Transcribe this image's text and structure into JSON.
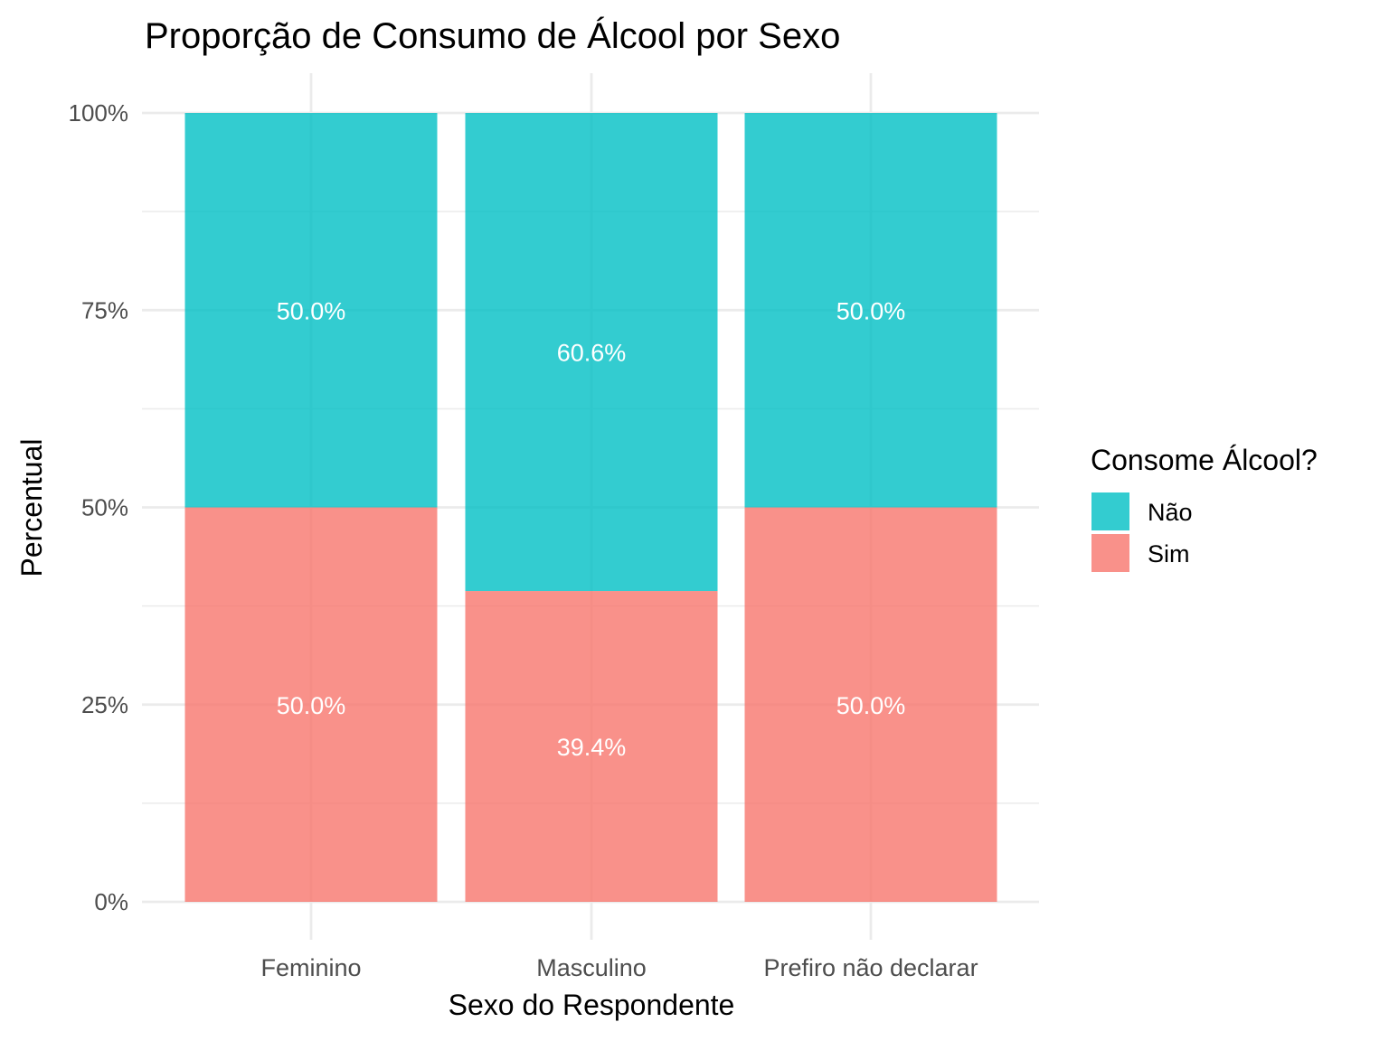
{
  "chart_data": {
    "type": "bar",
    "stacked": true,
    "title": "Proporção de Consumo de Álcool por Sexo",
    "xlabel": "Sexo do Respondente",
    "ylabel": "Percentual",
    "ylim": [
      0,
      100
    ],
    "y_ticks": [
      {
        "value": 0,
        "label": "0%"
      },
      {
        "value": 25,
        "label": "25%"
      },
      {
        "value": 50,
        "label": "50%"
      },
      {
        "value": 75,
        "label": "75%"
      },
      {
        "value": 100,
        "label": "100%"
      }
    ],
    "categories": [
      "Feminino",
      "Masculino",
      "Prefiro não declarar"
    ],
    "series": [
      {
        "name": "Sim",
        "color": "#F8766D",
        "values": [
          50.0,
          39.4,
          50.0
        ],
        "labels": [
          "50.0%",
          "39.4%",
          "50.0%"
        ]
      },
      {
        "name": "Não",
        "color": "#00BFC4",
        "values": [
          50.0,
          60.6,
          50.0
        ],
        "labels": [
          "50.0%",
          "60.6%",
          "50.0%"
        ]
      }
    ],
    "legend": {
      "title": "Consome Álcool?",
      "position": "right",
      "items": [
        {
          "label": "Não",
          "color": "#00BFC4"
        },
        {
          "label": "Sim",
          "color": "#F8766D"
        }
      ]
    },
    "grid": true
  }
}
